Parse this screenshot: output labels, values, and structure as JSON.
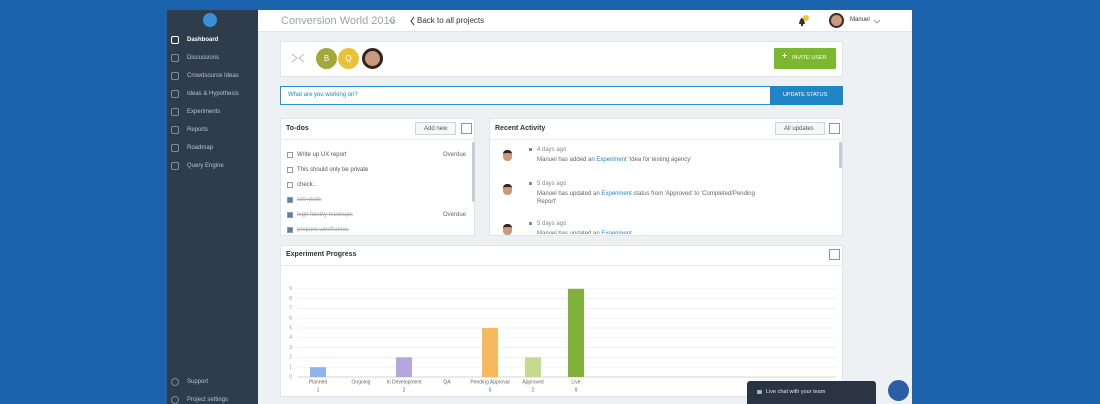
{
  "sidebar": {
    "items": [
      "Dashboard",
      "Discussions",
      "Crowdsource Ideas",
      "Ideas & Hypothesis",
      "Experiments",
      "Reports",
      "Roadmap",
      "Query Engine"
    ],
    "bottom_items": [
      "Support",
      "Project settings"
    ]
  },
  "topbar": {
    "project": "Conversion World 2016",
    "back_link": "Back to all projects",
    "user": "Manuel"
  },
  "team": {
    "avatars": [
      "B",
      "Q"
    ],
    "invite_button": "INVITE USER"
  },
  "status": {
    "placeholder": "What are you working on?",
    "button": "UPDATE STATUS"
  },
  "todos": {
    "title": "To-dos",
    "add_button": "Add new",
    "items": [
      {
        "text": "Write up UX report",
        "done": false,
        "due": "Overdue"
      },
      {
        "text": "This should only be private",
        "done": false
      },
      {
        "text": "check..",
        "done": false
      },
      {
        "text": "site visits",
        "done": true
      },
      {
        "text": "high fidelity mockups",
        "done": true,
        "due": "Overdue"
      },
      {
        "text": "prepare wireframes",
        "done": true
      }
    ]
  },
  "activity": {
    "title": "Recent Activity",
    "filter_button": "All updates",
    "entries": [
      {
        "time": "4 days ago",
        "before": "Manuel has added an",
        "link": "Experiment",
        "after": "'Idea for testing agency'"
      },
      {
        "time": "5 days ago",
        "before": "Manuel has updated an",
        "link": "Experiment",
        "after": "status from 'Approved' to 'Completed/Pending Report'"
      },
      {
        "time": "5 days ago",
        "before": "Manuel has updated an",
        "link": "Experiment",
        "after": ""
      }
    ]
  },
  "chart_data": {
    "type": "bar",
    "title": "Experiment Progress",
    "categories": [
      "Planned",
      "Ongoing",
      "In Development",
      "QA",
      "Pending Approval",
      "Approved",
      "Live"
    ],
    "values": [
      1,
      0,
      2,
      0,
      5,
      2,
      9
    ],
    "colors": [
      "#8fb3ea",
      "#8fb3ea",
      "#b9a5dd",
      "#b9a5dd",
      "#f8b95c",
      "#c5d98f",
      "#80b23b"
    ],
    "ylim": [
      0,
      10
    ],
    "yticks": [
      0,
      1,
      2,
      3,
      4,
      5,
      6,
      7,
      8,
      9
    ],
    "grid": true
  },
  "chat": {
    "label": "Live chat with your team"
  }
}
